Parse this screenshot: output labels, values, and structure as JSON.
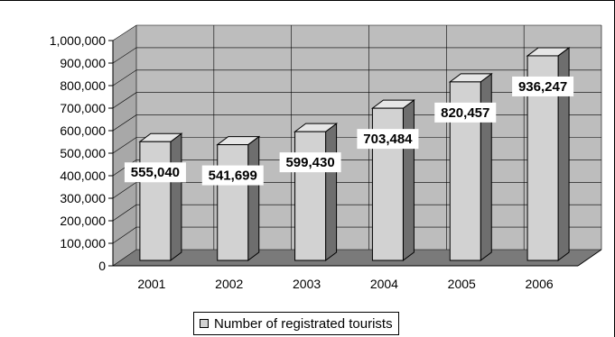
{
  "chart_data": {
    "type": "bar",
    "categories": [
      "2001",
      "2002",
      "2003",
      "2004",
      "2005",
      "2006"
    ],
    "series": [
      {
        "name": "Number of registrated tourists",
        "values": [
          555040,
          541699,
          599430,
          703484,
          820457,
          936247
        ]
      }
    ],
    "data_labels": [
      "555,040",
      "541,699",
      "599,430",
      "703,484",
      "820,457",
      "936,247"
    ],
    "y_ticks": [
      "0",
      "100,000",
      "200,000",
      "300,000",
      "400,000",
      "500,000",
      "600,000",
      "700,000",
      "800,000",
      "900,000",
      "1,000,000"
    ],
    "ylim": [
      0,
      1000000
    ],
    "style": "3d-bar",
    "grid": true,
    "legend_position": "bottom",
    "colors": {
      "bar_front": "#d2d2d2",
      "bar_side": "#6e6e6e",
      "bar_top": "#e6e6e6",
      "wall": "#bdbdbd",
      "floor": "#7a7a7a",
      "grid": "#000000"
    }
  }
}
